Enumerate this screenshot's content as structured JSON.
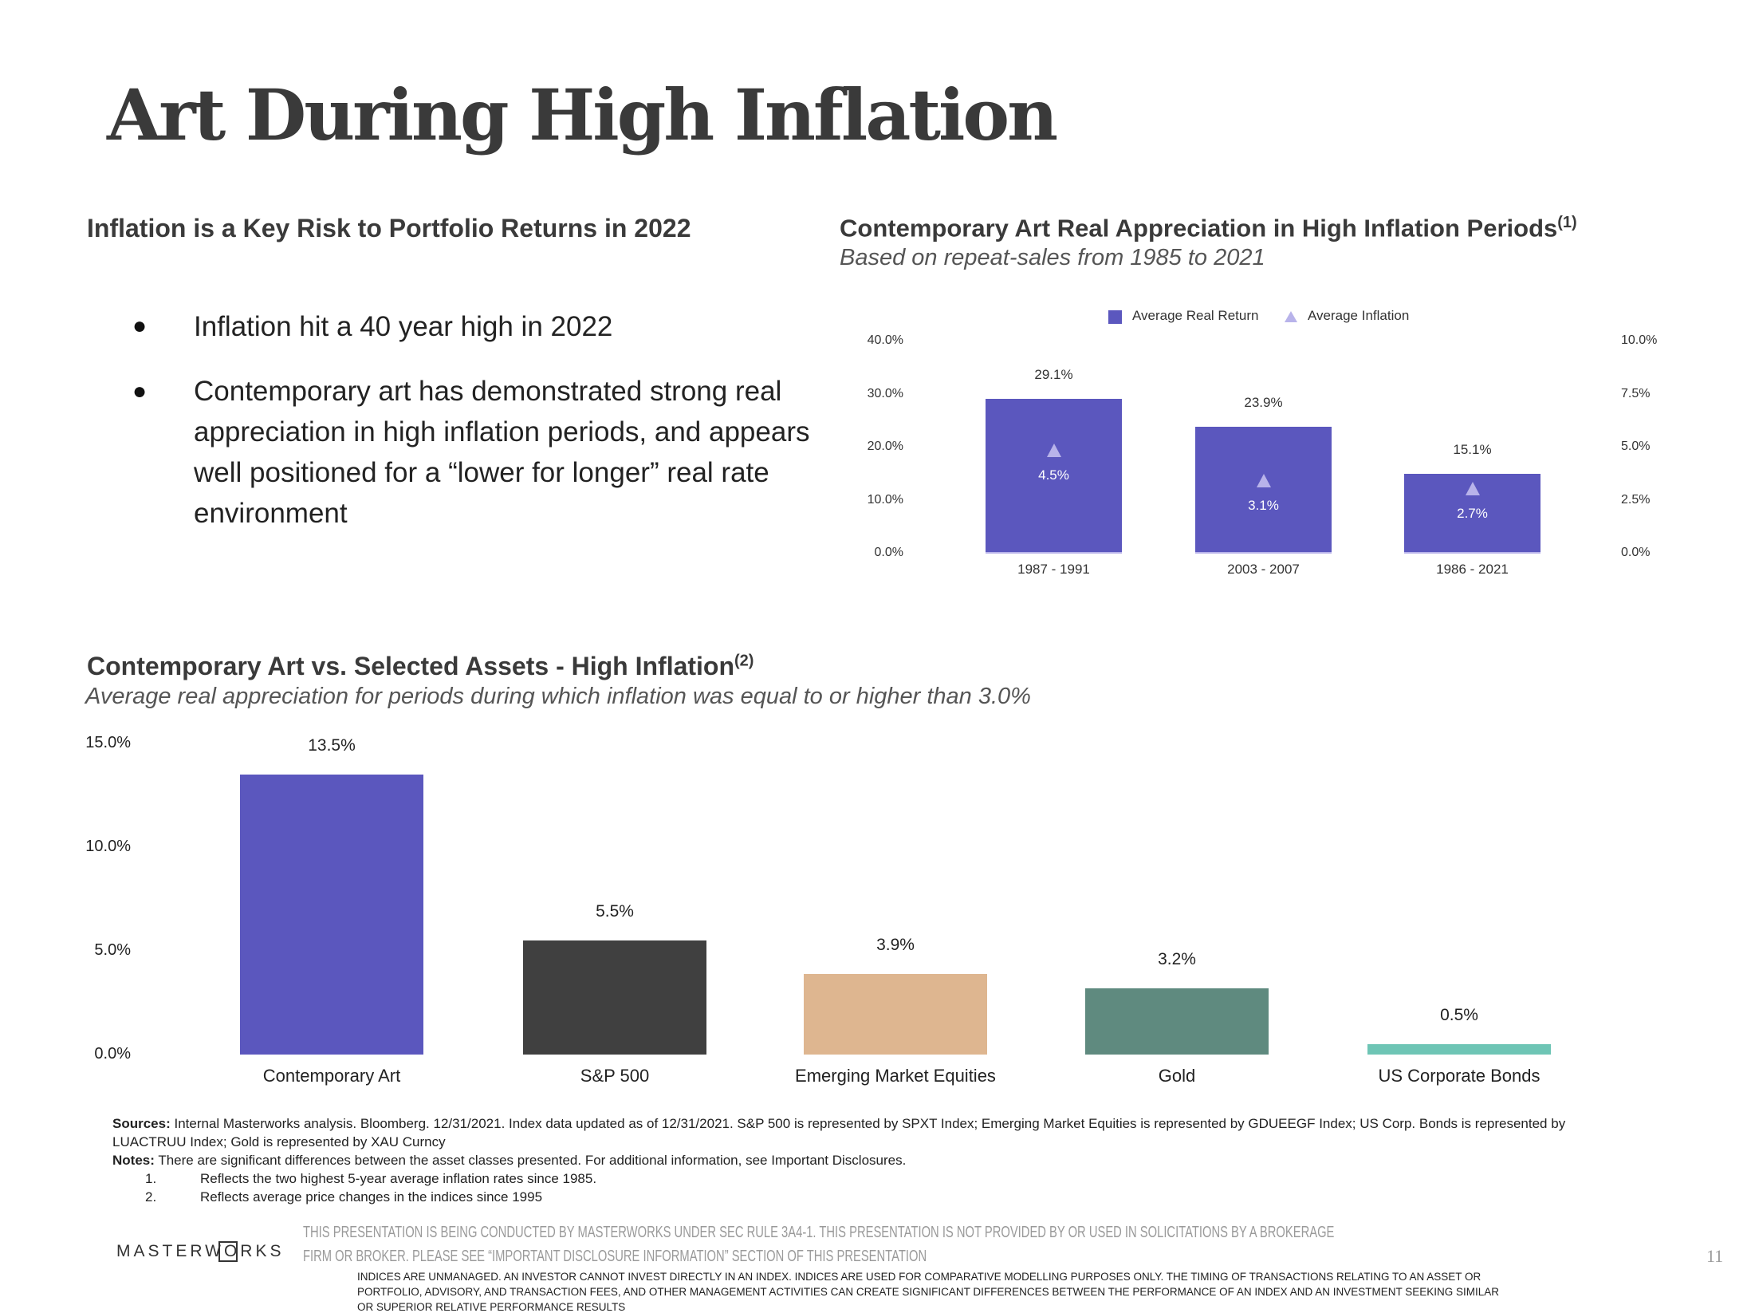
{
  "title": "Art During High Inflation",
  "left": {
    "heading": "Inflation is a Key Risk to Portfolio Returns in 2022",
    "bullets": [
      "Inflation hit a 40 year high in 2022",
      "Contemporary art has demonstrated strong real appreciation in high inflation periods, and appears well positioned for a “lower for longer” real rate environment"
    ]
  },
  "right": {
    "heading": "Contemporary Art Real Appreciation in High Inflation Periods",
    "heading_sup": "(1)",
    "subtitle": "Based on repeat-sales from 1985 to 2021"
  },
  "bottom": {
    "heading": "Contemporary Art vs. Selected Assets - High Inflation",
    "heading_sup": "(2)",
    "subtitle": "Average real appreciation for periods during which inflation was equal to or higher than 3.0%"
  },
  "chart_data": [
    {
      "type": "bar",
      "categories": [
        "1987 - 1991",
        "2003 - 2007",
        "1986 - 2021"
      ],
      "series": [
        {
          "name": "Average Real Return",
          "values": [
            29.1,
            23.9,
            15.1
          ],
          "labels": [
            "29.1%",
            "23.9%",
            "15.1%"
          ],
          "color": "#5B57BE",
          "axis": "left"
        },
        {
          "name": "Average Inflation",
          "values": [
            4.5,
            3.1,
            2.7
          ],
          "labels": [
            "4.5%",
            "3.1%",
            "2.7%"
          ],
          "color": "#B8B3EA",
          "axis": "right",
          "marker": "triangle"
        }
      ],
      "ylim": [
        0,
        40
      ],
      "yticks": [
        "0.0%",
        "10.0%",
        "20.0%",
        "30.0%",
        "40.0%"
      ],
      "y2lim": [
        0,
        10
      ],
      "y2ticks": [
        "0.0%",
        "2.5%",
        "5.0%",
        "7.5%",
        "10.0%"
      ],
      "legend": "top",
      "grid": false
    },
    {
      "type": "bar",
      "categories": [
        "Contemporary Art",
        "S&P 500",
        "Emerging Market Equities",
        "Gold",
        "US Corporate Bonds"
      ],
      "values": [
        13.5,
        5.5,
        3.9,
        3.2,
        0.5
      ],
      "labels": [
        "13.5%",
        "5.5%",
        "3.9%",
        "3.2%",
        "0.5%"
      ],
      "colors": [
        "#5B57BE",
        "#404040",
        "#DEB690",
        "#5F8A7F",
        "#6EC5B5"
      ],
      "ylim": [
        0,
        15
      ],
      "yticks": [
        "0.0%",
        "5.0%",
        "10.0%",
        "15.0%"
      ],
      "grid": false
    }
  ],
  "footer": {
    "sources_label": "Sources:",
    "sources_1": " Internal Masterworks analysis. Bloomberg. 12/31/2021. Index data updated as of 12/31/2021. S&P 500 is represented by SPXT Index; Emerging Market Equities is represented by GDUEEGF Index; US Corp. Bonds is represented by",
    "sources_2": "LUACTRUU Index; Gold is represented by XAU Curncy",
    "notes_label": "Notes:",
    "notes": " There are significant differences between the asset classes presented. For additional information, see Important Disclosures.",
    "note_items": [
      {
        "num": "1.",
        "text": "Reflects the two highest 5-year average inflation rates since 1985."
      },
      {
        "num": "2.",
        "text": "Reflects average price changes in the indices since 1995"
      }
    ],
    "logo": "MASTERWORKS",
    "disclaimer_1": "THIS PRESENTATION  IS BEING CONDUCTED BY MASTERWORKS UNDER SEC RULE 3A4-1. THIS PRESENTATION  IS NOT PROVIDED BY OR USED IN SOLICITATIONS BY A BROKERAGE",
    "disclaimer_2": "FIRM OR BROKER. PLEASE SEE “IMPORTANT DISCLOSURE INFORMATION” SECTION OF THIS PRESENTATION",
    "page_number": "11",
    "indices_1": "INDICES ARE UNMANAGED. AN INVESTOR CANNOT INVEST DIRECTLY IN AN INDEX. INDICES ARE USED FOR COMPARATIVE MODELLING PURPOSES ONLY. THE TIMING OF TRANSACTIONS RELATING TO AN ASSET OR",
    "indices_2": "PORTFOLIO, ADVISORY, AND TRANSACTION FEES, AND OTHER MANAGEMENT ACTIVITIES CAN CREATE SIGNIFICANT DIFFERENCES BETWEEN THE PERFORMANCE OF AN INDEX AND AN INVESTMENT SEEKING SIMILAR",
    "indices_3": "OR SUPERIOR RELATIVE PERFORMANCE RESULTS"
  }
}
